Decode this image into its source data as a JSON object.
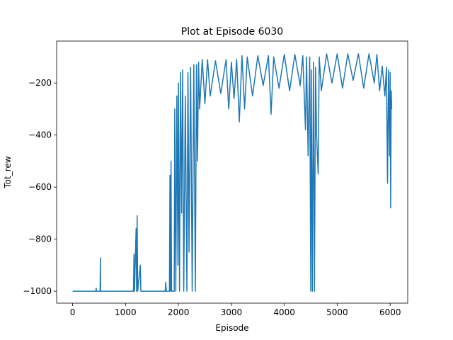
{
  "chart_data": {
    "type": "line",
    "title": "Plot at Episode 6030",
    "x_label": "Episode",
    "y_label": "Tot_rew",
    "xlim": [
      -301.5,
      6331.5
    ],
    "ylim": [
      -1046,
      -39
    ],
    "xticks": [
      0,
      1000,
      2000,
      3000,
      4000,
      5000,
      6000
    ],
    "yticks": [
      {
        "value": -1000,
        "label": "−1000"
      },
      {
        "value": -800,
        "label": "−800"
      },
      {
        "value": -600,
        "label": "−600"
      },
      {
        "value": -400,
        "label": "−400"
      },
      {
        "value": -200,
        "label": "−200"
      }
    ],
    "x": [
      0,
      440,
      445,
      450,
      520,
      525,
      530,
      1150,
      1160,
      1170,
      1200,
      1210,
      1220,
      1230,
      1280,
      1290,
      1750,
      1760,
      1770,
      1830,
      1840,
      1850,
      1860,
      1870,
      1920,
      1930,
      1950,
      1970,
      1990,
      2000,
      2020,
      2040,
      2060,
      2080,
      2100,
      2130,
      2160,
      2180,
      2200,
      2230,
      2260,
      2290,
      2320,
      2340,
      2360,
      2380,
      2400,
      2450,
      2500,
      2550,
      2600,
      2700,
      2800,
      2900,
      2950,
      3000,
      3050,
      3100,
      3150,
      3200,
      3250,
      3300,
      3400,
      3500,
      3600,
      3700,
      3750,
      3800,
      3900,
      4000,
      4100,
      4200,
      4300,
      4350,
      4400,
      4420,
      4450,
      4480,
      4500,
      4510,
      4530,
      4550,
      4570,
      4590,
      4610,
      4640,
      4660,
      4700,
      4800,
      4900,
      5000,
      5100,
      5200,
      5300,
      5400,
      5500,
      5600,
      5700,
      5750,
      5800,
      5850,
      5900,
      5930,
      5950,
      5970,
      5990,
      6000,
      6010,
      6020,
      6030
    ],
    "series": [
      {
        "color": "#1f77b4",
        "values": [
          -1000,
          -1000,
          -988,
          -1000,
          -1000,
          -872,
          -1000,
          -1000,
          -858,
          -1000,
          -760,
          -1000,
          -710,
          -1000,
          -900,
          -1000,
          -1000,
          -965,
          -1000,
          -1000,
          -555,
          -1000,
          -500,
          -1000,
          -1000,
          -300,
          -1000,
          -250,
          -900,
          -200,
          -1000,
          -160,
          -700,
          -150,
          -1000,
          -250,
          -1000,
          -160,
          -850,
          -140,
          -1000,
          -130,
          -1000,
          -130,
          -500,
          -120,
          -300,
          -110,
          -280,
          -110,
          -250,
          -115,
          -240,
          -110,
          -300,
          -120,
          -260,
          -110,
          -350,
          -95,
          -300,
          -100,
          -250,
          -95,
          -210,
          -95,
          -320,
          -100,
          -220,
          -90,
          -230,
          -90,
          -210,
          -95,
          -380,
          -100,
          -480,
          -100,
          -1000,
          -150,
          -1000,
          -120,
          -1000,
          -140,
          -400,
          -550,
          -100,
          -230,
          -88,
          -200,
          -88,
          -220,
          -88,
          -190,
          -88,
          -220,
          -88,
          -200,
          -90,
          -230,
          -135,
          -250,
          -140,
          -585,
          -150,
          -480,
          -160,
          -680,
          -230,
          -300
        ]
      }
    ]
  }
}
